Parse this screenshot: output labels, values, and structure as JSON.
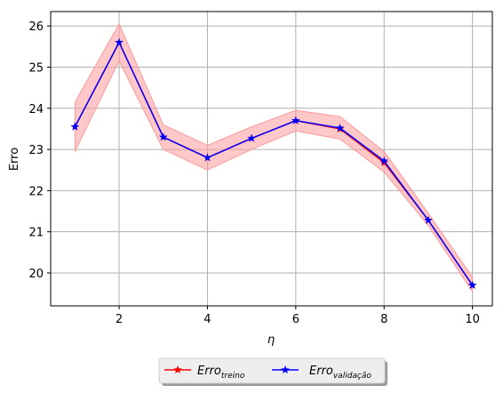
{
  "chart_data": {
    "type": "line",
    "xlabel": "η",
    "ylabel": "Erro",
    "xlim": [
      0.45,
      10.45
    ],
    "ylim": [
      19.2,
      26.35
    ],
    "x_ticks": [
      2,
      4,
      6,
      8,
      10
    ],
    "y_ticks": [
      20,
      21,
      22,
      23,
      24,
      25,
      26
    ],
    "grid": true,
    "legend_position": "below plot, center",
    "x": [
      1,
      2,
      3,
      4,
      5,
      6,
      7,
      8,
      9,
      10
    ],
    "series": [
      {
        "name_main": "Erro",
        "name_sub": "treino",
        "color": "#ff0000",
        "marker": "star",
        "values": [
          23.55,
          25.6,
          23.3,
          22.8,
          23.27,
          23.7,
          23.5,
          22.68,
          21.28,
          19.7
        ],
        "band_lower": [
          22.95,
          25.15,
          23.0,
          22.5,
          23.0,
          23.45,
          23.25,
          22.45,
          21.15,
          19.55
        ],
        "band_upper": [
          24.15,
          26.05,
          23.6,
          23.1,
          23.55,
          23.95,
          23.8,
          22.95,
          21.45,
          19.9
        ],
        "band_color": "#ff9a9a"
      },
      {
        "name_main": "Erro",
        "name_sub": "validação",
        "color": "#0000ff",
        "marker": "star",
        "values": [
          23.55,
          25.6,
          23.3,
          22.8,
          23.27,
          23.7,
          23.52,
          22.72,
          21.28,
          19.7
        ]
      }
    ]
  }
}
